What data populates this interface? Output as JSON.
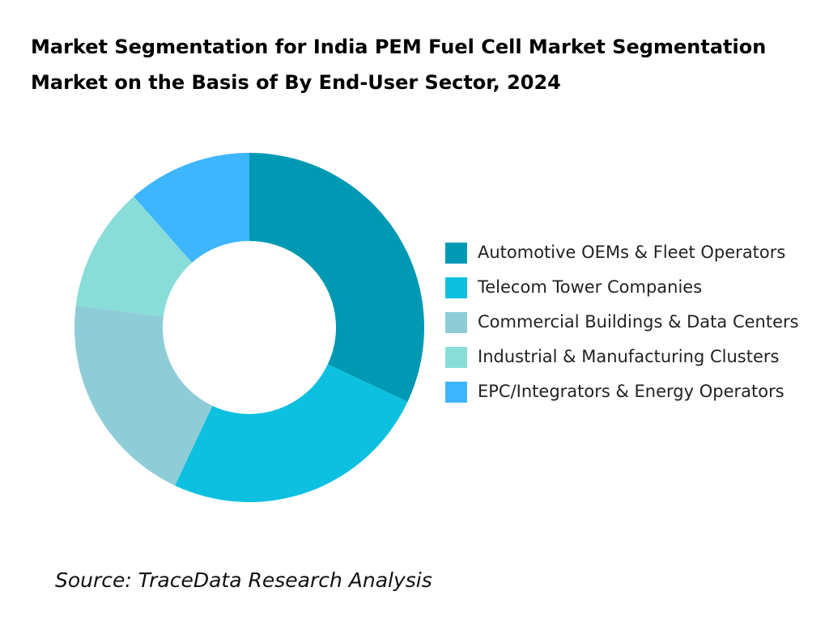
{
  "chart_data": {
    "type": "donut",
    "title": "Market Segmentation for India PEM Fuel Cell Market Segmentation Market on the Basis of By End-User Sector, 2024",
    "categories": [
      "Automotive OEMs & Fleet Operators",
      "Telecom Tower Companies",
      "Commercial Buildings & Data Centers",
      "Industrial & Manufacturing Clusters",
      "EPC/Integrators & Energy Operators"
    ],
    "values": [
      32,
      25,
      20,
      11.5,
      11.5
    ],
    "colors": [
      "#0099b4",
      "#0dc0e0",
      "#8ecdd8",
      "#88ddd8",
      "#3db5ff"
    ],
    "source": "Source: TraceData Research Analysis"
  }
}
